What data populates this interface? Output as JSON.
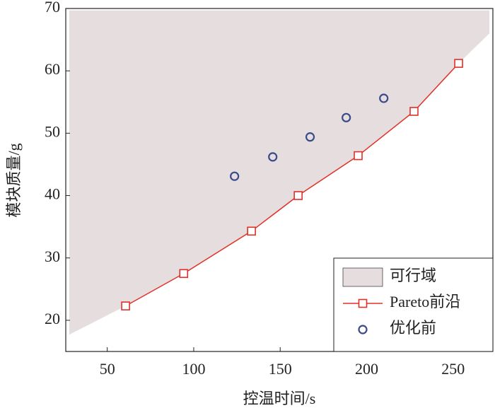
{
  "chart_data": {
    "type": "scatter",
    "x_label": "控温时间/s",
    "y_label": "模块质量/g",
    "xlim": [
      26,
      273
    ],
    "ylim": [
      15,
      70
    ],
    "xticks": [
      50,
      100,
      150,
      200,
      250
    ],
    "yticks": [
      20,
      30,
      40,
      50,
      60,
      70
    ],
    "legend": "lower right",
    "series": [
      {
        "name": "可行域",
        "type": "area",
        "color": "#e6dede",
        "x": [
          28,
          60.6,
          94.2,
          133.4,
          160.4,
          195.1,
          227.4,
          253.2,
          271,
          271,
          28
        ],
        "y": [
          17.7,
          22.3,
          27.5,
          34.3,
          40,
          46.4,
          53.5,
          61.2,
          66,
          69.7,
          69.7
        ]
      },
      {
        "name": "Pareto前沿",
        "type": "line",
        "color": "#e0302a",
        "x": [
          60.6,
          94.2,
          133.4,
          160.4,
          195.1,
          227.4,
          253.2
        ],
        "y": [
          22.3,
          27.5,
          34.3,
          40,
          46.4,
          53.5,
          61.2
        ]
      },
      {
        "name": "优化前",
        "type": "scatter",
        "color": "#3b4a8a",
        "x": [
          123.6,
          145.7,
          167.3,
          188.2,
          209.9
        ],
        "y": [
          43.1,
          46.2,
          49.4,
          52.5,
          55.6
        ]
      }
    ]
  }
}
